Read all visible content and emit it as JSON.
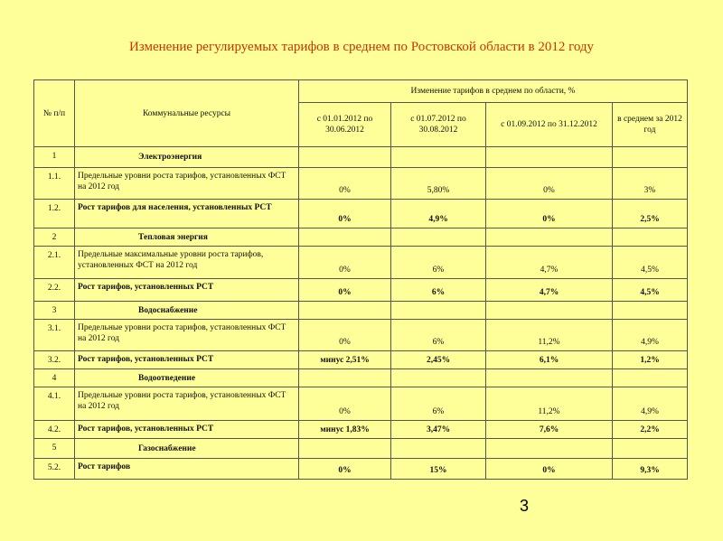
{
  "header": {
    "title": "Изменение регулируемых тарифов в среднем по Ростовской области в 2012 году"
  },
  "table": {
    "columns": {
      "number": "№ п/п",
      "resource": "Коммунальные ресурсы",
      "group": "Изменение тарифов в среднем по области, %",
      "periods": [
        "с 01.01.2012 по 30.06.2012",
        "с 01.07.2012 по 30.08.2012",
        "с 01.09.2012 по 31.12.2012",
        "в среднем за 2012 год"
      ]
    },
    "rows": [
      {
        "number": "1",
        "resource": "Электроэнергия"
      },
      {
        "number": "1.1.",
        "resource": "Предельные уровни роста тарифов, установленных ФСТ на 2012 год",
        "values": [
          "0%",
          "5,80%",
          "0%",
          "3%"
        ]
      },
      {
        "number": "1.2.",
        "resource": "Рост тарифов для населения, установленных РСТ",
        "values": [
          "0%",
          "4,9%",
          "0%",
          "2,5%"
        ],
        "bold": true
      },
      {
        "number": "2",
        "resource": "Тепловая энергия"
      },
      {
        "number": "2.1.",
        "resource": "Предельные максимальные уровни роста тарифов, установленных ФСТ на 2012 год",
        "values": [
          "0%",
          "6%",
          "4,7%",
          "4,5%"
        ]
      },
      {
        "number": "2.2.",
        "resource": "Рост тарифов, установленных РСТ",
        "values": [
          "0%",
          "6%",
          "4,7%",
          "4,5%"
        ],
        "bold": true
      },
      {
        "number": "3",
        "resource": "Водоснабжение"
      },
      {
        "number": "3.1.",
        "resource": "Предельные уровни роста тарифов, установленных ФСТ на 2012 год",
        "values": [
          "0%",
          "6%",
          "11,2%",
          "4,9%"
        ]
      },
      {
        "number": "3.2.",
        "resource": "Рост тарифов, установленных РСТ",
        "values": [
          "минус 2,51%",
          "2,45%",
          "6,1%",
          "1,2%"
        ],
        "bold": true
      },
      {
        "number": "4",
        "resource": "Водоотведение"
      },
      {
        "number": "4.1.",
        "resource": "Предельные уровни роста тарифов, установленных ФСТ на 2012 год",
        "values": [
          "0%",
          "6%",
          "11,2%",
          "4,9%"
        ]
      },
      {
        "number": "4.2.",
        "resource": "Рост тарифов, установленных РСТ",
        "values": [
          "минус 1,83%",
          "3,47%",
          "7,6%",
          "2,2%"
        ],
        "bold": true
      },
      {
        "number": "5",
        "resource": "Газоснабжение"
      },
      {
        "number": "5.2.",
        "resource": "Рост тарифов",
        "values": [
          "0%",
          "15%",
          "0%",
          "9,3%"
        ],
        "bold": true
      }
    ]
  },
  "footer": {
    "page": "3"
  }
}
